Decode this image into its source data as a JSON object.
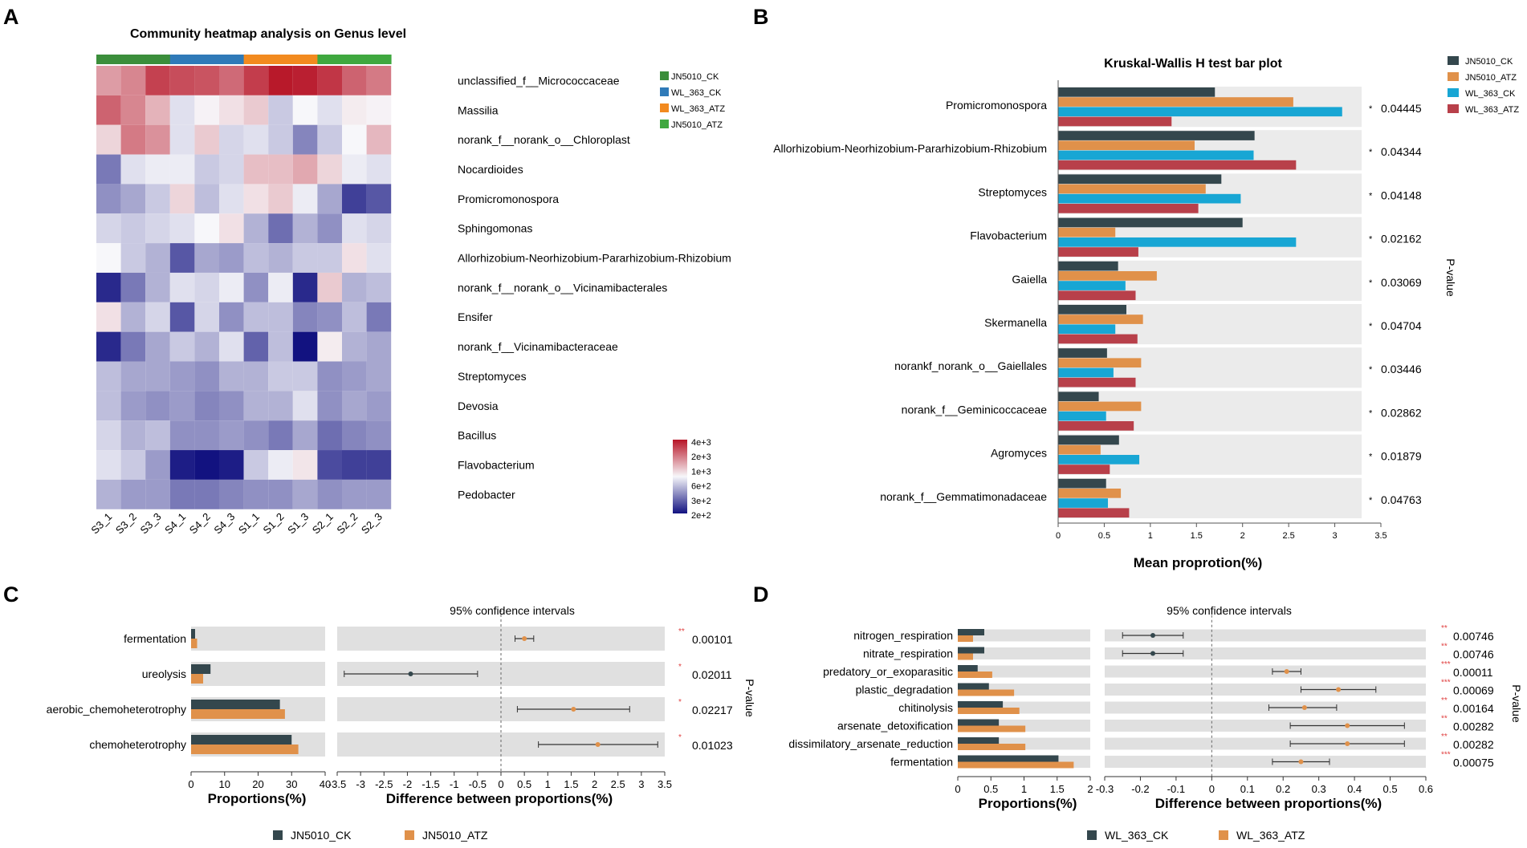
{
  "panel_letters": {
    "a": "A",
    "b": "B",
    "c": "C",
    "d": "D"
  },
  "chart_data": [
    {
      "type": "heatmap",
      "title": "Community heatmap analysis on Genus level",
      "columns": [
        "S3_1",
        "S3_2",
        "S3_3",
        "S4_1",
        "S4_2",
        "S4_3",
        "S1_1",
        "S1_2",
        "S1_3",
        "S2_1",
        "S2_2",
        "S2_3"
      ],
      "column_group_colors": [
        "#3b8e3b",
        "#3b8e3b",
        "#3b8e3b",
        "#2f7ab8",
        "#2f7ab8",
        "#2f7ab8",
        "#f28a1f",
        "#f28a1f",
        "#f28a1f",
        "#3fa83f",
        "#3fa83f",
        "#3fa83f"
      ],
      "rows": [
        "unclassified_f__Micrococcaceae",
        "Massilia",
        "norank_f__norank_o__Chloroplast",
        "Nocardioides",
        "Promicromonospora",
        "Sphingomonas",
        "Allorhizobium-Neorhizobium-Pararhizobium-Rhizobium",
        "norank_f__norank_o__Vicinamibacterales",
        "Ensifer",
        "norank_f__Vicinamibacteraceae",
        "Streptomyces",
        "Devosia",
        "Bacillus",
        "Flavobacterium",
        "Pedobacter"
      ],
      "values": [
        [
          0.4,
          0.5,
          0.8,
          0.75,
          0.72,
          0.62,
          0.82,
          0.98,
          0.95,
          0.85,
          0.65,
          0.55
        ],
        [
          0.65,
          0.5,
          0.3,
          -0.1,
          0.02,
          0.1,
          0.2,
          -0.2,
          0.0,
          -0.1,
          0.05,
          0.02
        ],
        [
          0.15,
          0.55,
          0.45,
          -0.1,
          0.2,
          -0.15,
          -0.1,
          -0.2,
          -0.5,
          -0.2,
          0.0,
          0.28
        ],
        [
          -0.55,
          -0.1,
          -0.05,
          -0.05,
          -0.2,
          -0.15,
          0.25,
          0.25,
          0.35,
          0.15,
          -0.05,
          -0.1
        ],
        [
          -0.45,
          -0.35,
          -0.2,
          0.15,
          -0.25,
          -0.1,
          0.1,
          0.2,
          -0.05,
          -0.35,
          -0.8,
          -0.7
        ],
        [
          -0.15,
          -0.2,
          -0.15,
          -0.1,
          0.0,
          0.1,
          -0.3,
          -0.6,
          -0.3,
          -0.45,
          -0.1,
          -0.15
        ],
        [
          0.0,
          -0.2,
          -0.3,
          -0.7,
          -0.35,
          -0.4,
          -0.25,
          -0.3,
          -0.2,
          -0.2,
          0.1,
          -0.1
        ],
        [
          -0.9,
          -0.55,
          -0.3,
          -0.1,
          -0.15,
          -0.05,
          -0.45,
          -0.05,
          -0.9,
          0.2,
          -0.3,
          -0.25
        ],
        [
          0.1,
          -0.3,
          -0.15,
          -0.7,
          -0.15,
          -0.45,
          -0.25,
          -0.25,
          -0.5,
          -0.45,
          -0.25,
          -0.55
        ],
        [
          -0.9,
          -0.55,
          -0.35,
          -0.2,
          -0.3,
          -0.1,
          -0.65,
          -0.25,
          -1.0,
          0.05,
          -0.3,
          -0.35
        ],
        [
          -0.25,
          -0.35,
          -0.35,
          -0.4,
          -0.45,
          -0.3,
          -0.3,
          -0.2,
          -0.2,
          -0.45,
          -0.4,
          -0.35
        ],
        [
          -0.25,
          -0.4,
          -0.45,
          -0.4,
          -0.5,
          -0.45,
          -0.3,
          -0.3,
          -0.1,
          -0.45,
          -0.35,
          -0.4
        ],
        [
          -0.15,
          -0.3,
          -0.25,
          -0.45,
          -0.45,
          -0.4,
          -0.45,
          -0.55,
          -0.35,
          -0.6,
          -0.5,
          -0.45
        ],
        [
          -0.1,
          -0.2,
          -0.4,
          -0.95,
          -1.0,
          -0.95,
          -0.2,
          -0.05,
          0.08,
          -0.75,
          -0.8,
          -0.8
        ],
        [
          -0.3,
          -0.4,
          -0.4,
          -0.55,
          -0.55,
          -0.5,
          -0.45,
          -0.45,
          -0.35,
          -0.45,
          -0.4,
          -0.4
        ]
      ],
      "legend": [
        {
          "name": "JN5010_CK",
          "color": "#3b8e3b"
        },
        {
          "name": "WL_363_CK",
          "color": "#2f7ab8"
        },
        {
          "name": "WL_363_ATZ",
          "color": "#f28a1f"
        },
        {
          "name": "JN5010_ATZ",
          "color": "#3fa83f"
        }
      ],
      "colorbar_labels": [
        "4e+3",
        "2e+3",
        "1e+3",
        "6e+2",
        "3e+2",
        "2e+2"
      ]
    },
    {
      "type": "bar",
      "title": "Kruskal-Wallis H test bar plot",
      "xlabel": "Mean proprotion(%)",
      "p_label": "P-value",
      "xlim": [
        0,
        3.5
      ],
      "xticks": [
        "0",
        "0.5",
        "1",
        "1.5",
        "2",
        "2.5",
        "3",
        "3.5"
      ],
      "categories": [
        "Promicromonospora",
        "Allorhizobium-Neorhizobium-Pararhizobium-Rhizobium",
        "Streptomyces",
        "Flavobacterium",
        "Gaiella",
        "Skermanella",
        "norankf_norank_o__Gaiellales",
        "norank_f__Geminicoccaceae",
        "Agromyces",
        "norank_f__Gemmatimonadaceae"
      ],
      "p_values": [
        "0.04445",
        "0.04344",
        "0.04148",
        "0.02162",
        "0.03069",
        "0.04704",
        "0.03446",
        "0.02862",
        "0.01879",
        "0.04763"
      ],
      "p_marker": "*",
      "series": [
        {
          "name": "JN5010_CK",
          "color": "#34474d",
          "values": [
            1.7,
            2.13,
            1.77,
            2.0,
            0.65,
            0.74,
            0.53,
            0.44,
            0.66,
            0.52
          ]
        },
        {
          "name": "JN5010_ATZ",
          "color": "#e0914a",
          "values": [
            2.55,
            1.48,
            1.6,
            0.62,
            1.07,
            0.92,
            0.9,
            0.9,
            0.46,
            0.68
          ]
        },
        {
          "name": "WL_363_CK",
          "color": "#18a6d4",
          "values": [
            3.08,
            2.12,
            1.98,
            2.58,
            0.73,
            0.62,
            0.6,
            0.52,
            0.88,
            0.54
          ]
        },
        {
          "name": "WL_363_ATZ",
          "color": "#b8404a",
          "values": [
            1.23,
            2.58,
            1.52,
            0.87,
            0.84,
            0.86,
            0.84,
            0.82,
            0.56,
            0.77
          ]
        }
      ]
    },
    {
      "type": "bar",
      "ci_title": "95% confidence intervals",
      "xlabel_left": "Proportions(%)",
      "xlabel_right": "Difference between proportions(%)",
      "p_label": "P-value",
      "left_xlim": [
        0,
        40
      ],
      "left_xticks": [
        "0",
        "10",
        "20",
        "30",
        "40"
      ],
      "right_xlim": [
        -3.5,
        3.5
      ],
      "right_xticks": [
        "-3.5",
        "-3",
        "-2.5",
        "-2",
        "-1.5",
        "-1",
        "-0.5",
        "0",
        "0.5",
        "1",
        "1.5",
        "2",
        "2.5",
        "3",
        "3.5"
      ],
      "categories": [
        "fermentation",
        "ureolysis",
        "aerobic_chemoheterotrophy",
        "chemoheterotrophy"
      ],
      "series": [
        {
          "name": "JN5010_CK",
          "color": "#34474d",
          "values": [
            1.2,
            5.8,
            26.5,
            30.0
          ]
        },
        {
          "name": "JN5010_ATZ",
          "color": "#e0914a",
          "values": [
            1.8,
            3.6,
            28.0,
            32.0
          ]
        }
      ],
      "diff": [
        0.5,
        -1.93,
        1.55,
        2.07
      ],
      "ci_low": [
        0.3,
        -3.35,
        0.35,
        0.8
      ],
      "ci_high": [
        0.7,
        -0.5,
        2.75,
        3.35
      ],
      "stars": [
        "**",
        "*",
        "*",
        "*"
      ],
      "p_values": [
        "0.00101",
        "0.02011",
        "0.02217",
        "0.01023"
      ]
    },
    {
      "type": "bar",
      "ci_title": "95% confidence intervals",
      "xlabel_left": "Proportions(%)",
      "xlabel_right": "Difference between proportions(%)",
      "p_label": "P-value",
      "left_xlim": [
        0,
        2
      ],
      "left_xticks": [
        "0",
        "0.5",
        "1",
        "1.5",
        "2"
      ],
      "right_xlim": [
        -0.3,
        0.6
      ],
      "right_xticks": [
        "-0.3",
        "-0.2",
        "-0.1",
        "0",
        "0.1",
        "0.2",
        "0.3",
        "0.4",
        "0.5",
        "0.6"
      ],
      "categories": [
        "nitrogen_respiration",
        "nitrate_respiration",
        "predatory_or_exoparasitic",
        "plastic_degradation",
        "chitinolysis",
        "arsenate_detoxification",
        "dissimilatory_arsenate_reduction",
        "fermentation"
      ],
      "series": [
        {
          "name": "WL_363_CK",
          "color": "#34474d",
          "values": [
            0.4,
            0.4,
            0.3,
            0.47,
            0.68,
            0.62,
            0.62,
            1.52
          ]
        },
        {
          "name": "WL_363_ATZ",
          "color": "#e0914a",
          "values": [
            0.23,
            0.23,
            0.52,
            0.85,
            0.93,
            1.02,
            1.02,
            1.75
          ]
        }
      ],
      "diff": [
        -0.165,
        -0.165,
        0.21,
        0.355,
        0.26,
        0.38,
        0.38,
        0.25
      ],
      "ci_low": [
        -0.25,
        -0.25,
        0.17,
        0.25,
        0.16,
        0.22,
        0.22,
        0.17
      ],
      "ci_high": [
        -0.08,
        -0.08,
        0.25,
        0.46,
        0.35,
        0.54,
        0.54,
        0.33
      ],
      "stars": [
        "**",
        "**",
        "***",
        "***",
        "**",
        "**",
        "**",
        "***"
      ],
      "p_values": [
        "0.00746",
        "0.00746",
        "0.00011",
        "0.00069",
        "0.00164",
        "0.00282",
        "0.00282",
        "0.00075"
      ]
    }
  ]
}
